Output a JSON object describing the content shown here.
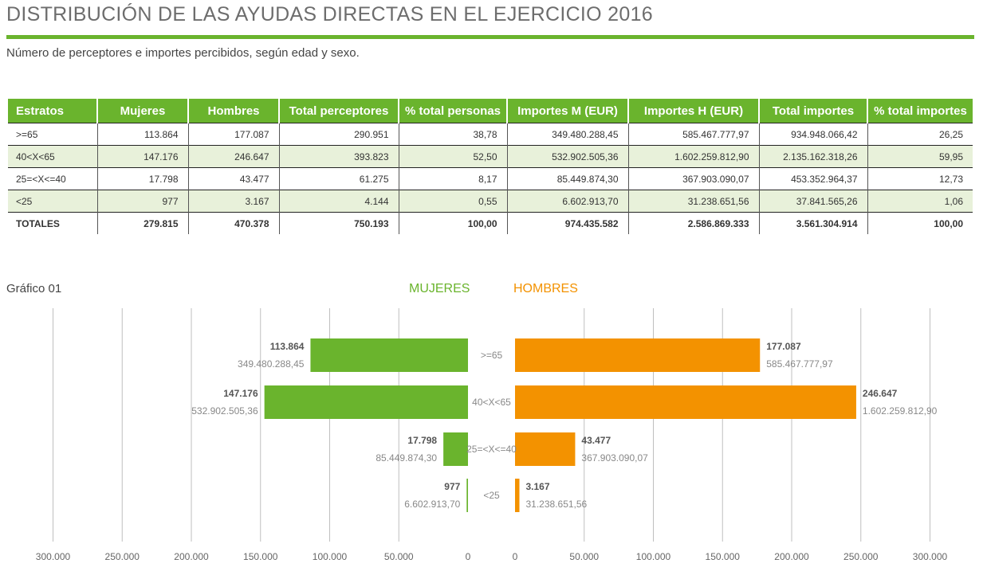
{
  "title": "DISTRIBUCIÓN DE LAS AYUDAS DIRECTAS EN EL EJERCICIO 2016",
  "subtitle": "Número de perceptores e importes percibidos, según edad y sexo.",
  "table": {
    "headers": [
      "Estratos",
      "Mujeres",
      "Hombres",
      "Total perceptores",
      "% total personas",
      "Importes M (EUR)",
      "Importes H (EUR)",
      "Total importes",
      "% total importes"
    ],
    "rows": [
      [
        ">=65",
        "113.864",
        "177.087",
        "290.951",
        "38,78",
        "349.480.288,45",
        "585.467.777,97",
        "934.948.066,42",
        "26,25"
      ],
      [
        "40<X<65",
        "147.176",
        "246.647",
        "393.823",
        "52,50",
        "532.902.505,36",
        "1.602.259.812,90",
        "2.135.162.318,26",
        "59,95"
      ],
      [
        "25=<X<=40",
        "17.798",
        "43.477",
        "61.275",
        "8,17",
        "85.449.874,30",
        "367.903.090,07",
        "453.352.964,37",
        "12,73"
      ],
      [
        "<25",
        "977",
        "3.167",
        "4.144",
        "0,55",
        "6.602.913,70",
        "31.238.651,56",
        "37.841.565,26",
        "1,06"
      ],
      [
        "TOTALES",
        "279.815",
        "470.378",
        "750.193",
        "100,00",
        "974.435.582",
        "2.586.869.333",
        "3.561.304.914",
        "100,00"
      ]
    ]
  },
  "chart_label": "Gráfico 01",
  "legend": {
    "women": "MUJERES",
    "men": "HOMBRES"
  },
  "colors": {
    "green": "#6ab42d",
    "orange": "#f39200",
    "row_alt": "#e8f1da"
  },
  "chart_data": {
    "type": "bar",
    "orientation": "horizontal-butterfly",
    "categories": [
      ">=65",
      "40<X<65",
      "25=<X<=40",
      "<25"
    ],
    "series": [
      {
        "name": "MUJERES",
        "values": [
          113864,
          147176,
          17798,
          977
        ],
        "value_labels": [
          "113.864",
          "147.176",
          "17.798",
          "977"
        ],
        "amount_labels": [
          "349.480.288,45",
          "532.902.505,36",
          "85.449.874,30",
          "6.602.913,70"
        ]
      },
      {
        "name": "HOMBRES",
        "values": [
          177087,
          246647,
          43477,
          3167
        ],
        "value_labels": [
          "177.087",
          "246.647",
          "43.477",
          "3.167"
        ],
        "amount_labels": [
          "585.467.777,97",
          "1.602.259.812,90",
          "367.903.090,07",
          "31.238.651,56"
        ]
      }
    ],
    "xlim": [
      0,
      300000
    ],
    "left_ticks": [
      "300.000",
      "250.000",
      "200.000",
      "150.000",
      "100.000",
      "50.000",
      "0"
    ],
    "right_ticks": [
      "0",
      "50.000",
      "100.000",
      "150.000",
      "200.000",
      "250.000",
      "300.000"
    ],
    "grid": true,
    "legend_position": "top-center"
  }
}
